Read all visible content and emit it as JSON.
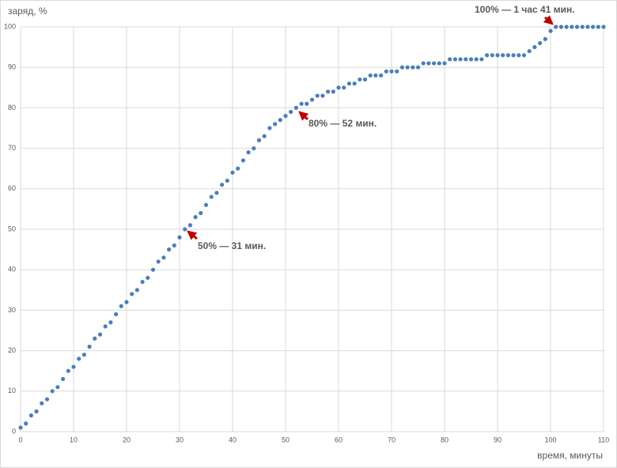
{
  "chart_data": {
    "type": "scatter",
    "y_label": "заряд, %",
    "x_label": "время, минуты",
    "color": "#4a7ebb",
    "grid": true,
    "x": [
      0,
      1,
      2,
      3,
      4,
      5,
      6,
      7,
      8,
      9,
      10,
      11,
      12,
      13,
      14,
      15,
      16,
      17,
      18,
      19,
      20,
      21,
      22,
      23,
      24,
      25,
      26,
      27,
      28,
      29,
      30,
      31,
      32,
      33,
      34,
      35,
      36,
      37,
      38,
      39,
      40,
      41,
      42,
      43,
      44,
      45,
      46,
      47,
      48,
      49,
      50,
      51,
      52,
      53,
      54,
      55,
      56,
      57,
      58,
      59,
      60,
      61,
      62,
      63,
      64,
      65,
      66,
      67,
      68,
      69,
      70,
      71,
      72,
      73,
      74,
      75,
      76,
      77,
      78,
      79,
      80,
      81,
      82,
      83,
      84,
      85,
      86,
      87,
      88,
      89,
      90,
      91,
      92,
      93,
      94,
      95,
      96,
      97,
      98,
      99,
      100,
      101,
      102,
      103,
      104,
      105,
      106,
      107,
      108,
      109,
      110
    ],
    "values": [
      1,
      2,
      4,
      5,
      7,
      8,
      10,
      11,
      13,
      15,
      16,
      18,
      19,
      21,
      23,
      24,
      26,
      27,
      29,
      31,
      32,
      34,
      35,
      37,
      38,
      40,
      42,
      43,
      45,
      46,
      48,
      50,
      51,
      53,
      54,
      56,
      58,
      59,
      61,
      62,
      64,
      65,
      67,
      69,
      70,
      72,
      73,
      75,
      76,
      77,
      78,
      79,
      80,
      81,
      81,
      82,
      83,
      83,
      84,
      84,
      85,
      85,
      86,
      86,
      87,
      87,
      88,
      88,
      88,
      89,
      89,
      89,
      90,
      90,
      90,
      90,
      91,
      91,
      91,
      91,
      91,
      92,
      92,
      92,
      92,
      92,
      92,
      92,
      93,
      93,
      93,
      93,
      93,
      93,
      93,
      93,
      94,
      95,
      96,
      97,
      99,
      100,
      100,
      100,
      100,
      100,
      100,
      100,
      100,
      100,
      100
    ],
    "xlim": [
      0,
      110
    ],
    "ylim": [
      0,
      100
    ],
    "xticks": [
      0,
      10,
      20,
      30,
      40,
      50,
      60,
      70,
      80,
      90,
      100,
      110
    ],
    "yticks": [
      0,
      10,
      20,
      30,
      40,
      50,
      60,
      70,
      80,
      90,
      100
    ],
    "annotations": [
      "50% — 31 мин.",
      "80% — 52 мин.",
      "100% — 1 час 41 мин."
    ]
  }
}
